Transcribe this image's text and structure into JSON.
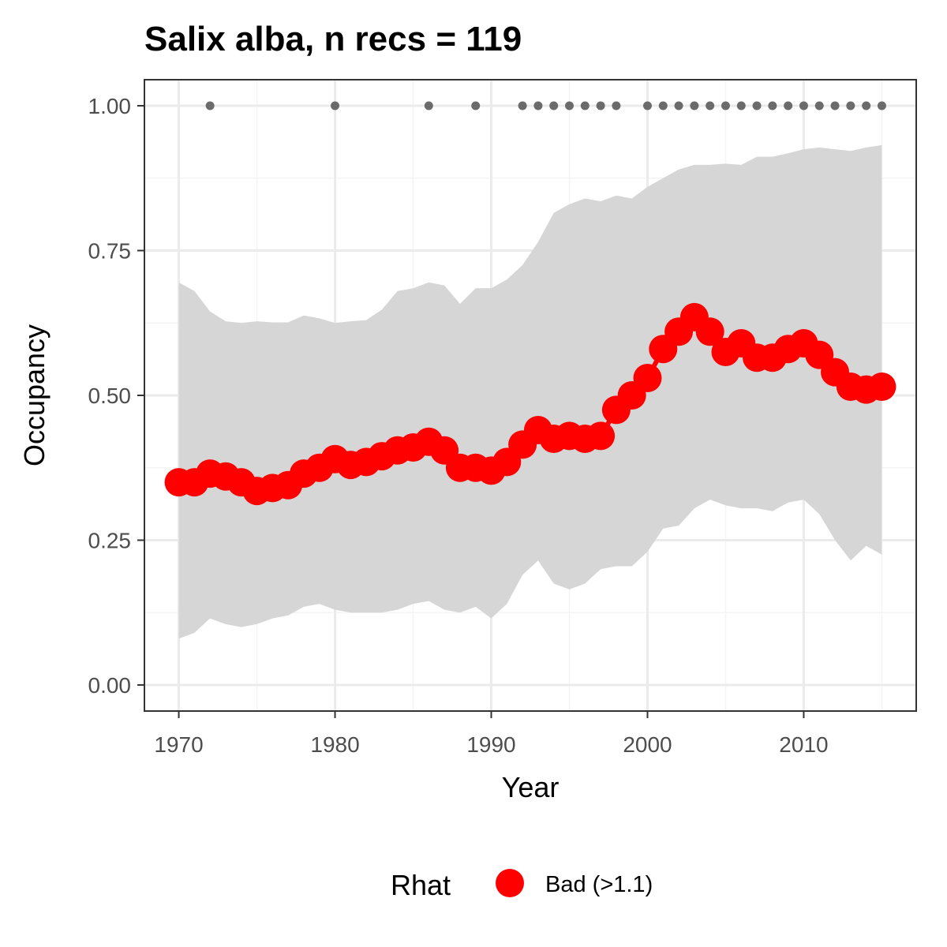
{
  "chart_data": {
    "type": "line",
    "title": "Salix alba, n recs = 119",
    "xlabel": "Year",
    "ylabel": "Occupancy",
    "xlim": [
      1967.8,
      2017.2
    ],
    "ylim": [
      -0.045,
      1.045
    ],
    "x_ticks": [
      1970,
      1980,
      1990,
      2000,
      2010
    ],
    "x_tick_labels": [
      "1970",
      "1980",
      "1990",
      "2000",
      "2010"
    ],
    "y_ticks": [
      0,
      0.25,
      0.5,
      0.75,
      1.0
    ],
    "y_tick_labels": [
      "0.00",
      "0.25",
      "0.50",
      "0.75",
      "1.00"
    ],
    "grid": true,
    "legend": {
      "title": "Rhat",
      "placement": "bottom",
      "entries": [
        {
          "label": "Bad (>1.1)",
          "color": "#ff0000"
        }
      ]
    },
    "colors": {
      "line": "#ff0000",
      "ribbon": "#d6d6d6",
      "record_points": "#6b6b6b",
      "panel_border": "#333333",
      "grid_major": "#ebebeb"
    },
    "years": [
      1970,
      1971,
      1972,
      1973,
      1974,
      1975,
      1976,
      1977,
      1978,
      1979,
      1980,
      1981,
      1982,
      1983,
      1984,
      1985,
      1986,
      1987,
      1988,
      1989,
      1990,
      1991,
      1992,
      1993,
      1994,
      1995,
      1996,
      1997,
      1998,
      1999,
      2000,
      2001,
      2002,
      2003,
      2004,
      2005,
      2006,
      2007,
      2008,
      2009,
      2010,
      2011,
      2012,
      2013,
      2014,
      2015
    ],
    "series": [
      {
        "role": "mean",
        "values": [
          0.35,
          0.35,
          0.365,
          0.36,
          0.35,
          0.335,
          0.34,
          0.345,
          0.365,
          0.375,
          0.39,
          0.38,
          0.385,
          0.395,
          0.405,
          0.41,
          0.42,
          0.405,
          0.375,
          0.375,
          0.37,
          0.385,
          0.415,
          0.44,
          0.425,
          0.43,
          0.425,
          0.43,
          0.475,
          0.5,
          0.53,
          0.58,
          0.61,
          0.635,
          0.61,
          0.575,
          0.59,
          0.565,
          0.565,
          0.58,
          0.59,
          0.57,
          0.54,
          0.515,
          0.51,
          0.515
        ]
      },
      {
        "role": "upper",
        "values": [
          0.695,
          0.68,
          0.645,
          0.628,
          0.625,
          0.628,
          0.626,
          0.626,
          0.638,
          0.633,
          0.625,
          0.628,
          0.63,
          0.648,
          0.68,
          0.685,
          0.695,
          0.69,
          0.658,
          0.685,
          0.685,
          0.7,
          0.725,
          0.765,
          0.815,
          0.83,
          0.84,
          0.835,
          0.845,
          0.84,
          0.86,
          0.875,
          0.89,
          0.898,
          0.898,
          0.9,
          0.898,
          0.912,
          0.912,
          0.918,
          0.925,
          0.928,
          0.925,
          0.922,
          0.928,
          0.932
        ]
      },
      {
        "role": "lower",
        "values": [
          0.08,
          0.09,
          0.115,
          0.105,
          0.1,
          0.105,
          0.115,
          0.12,
          0.135,
          0.14,
          0.13,
          0.125,
          0.125,
          0.125,
          0.13,
          0.14,
          0.145,
          0.13,
          0.125,
          0.135,
          0.115,
          0.14,
          0.19,
          0.215,
          0.175,
          0.165,
          0.175,
          0.2,
          0.205,
          0.205,
          0.23,
          0.27,
          0.275,
          0.305,
          0.32,
          0.31,
          0.305,
          0.305,
          0.3,
          0.315,
          0.32,
          0.295,
          0.25,
          0.215,
          0.24,
          0.225
        ]
      }
    ],
    "record_years": [
      1972,
      1980,
      1986,
      1989,
      1992,
      1993,
      1994,
      1995,
      1996,
      1997,
      1998,
      2000,
      2001,
      2002,
      2003,
      2004,
      2005,
      2006,
      2007,
      2008,
      2009,
      2010,
      2011,
      2012,
      2013,
      2014,
      2015
    ],
    "record_y": 1.0
  }
}
